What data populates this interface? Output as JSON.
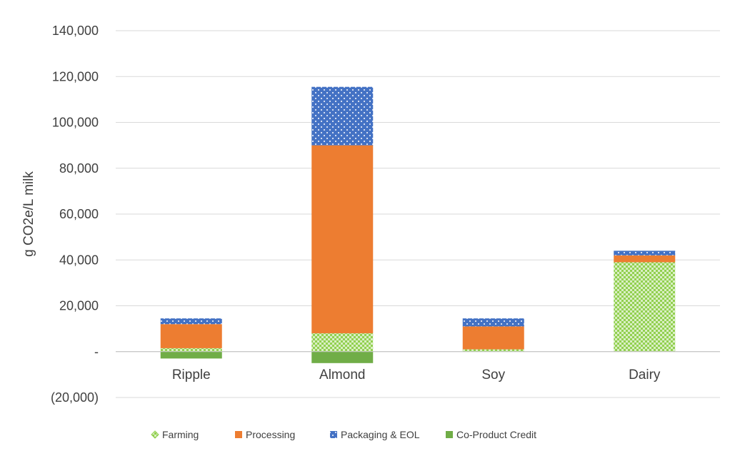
{
  "chart_data": {
    "type": "bar",
    "stacked": true,
    "title": "",
    "xlabel": "",
    "ylabel": "g CO2e/L milk",
    "ylim": [
      -20000,
      140000
    ],
    "yticks": [
      -20000,
      0,
      20000,
      40000,
      60000,
      80000,
      100000,
      120000,
      140000
    ],
    "ytick_labels": [
      "(20,000)",
      "-",
      "20,000",
      "40,000",
      "60,000",
      "80,000",
      "100,000",
      "120,000",
      "140,000"
    ],
    "grid": true,
    "legend_position": "bottom",
    "categories": [
      "Ripple",
      "Almond",
      "Soy",
      "Dairy"
    ],
    "series": [
      {
        "name": "Farming",
        "color": "#92d050",
        "pattern": "checker",
        "values": [
          1500,
          8000,
          1000,
          39000
        ]
      },
      {
        "name": "Processing",
        "color": "#ed7d31",
        "pattern": "solid",
        "values": [
          10500,
          82000,
          10000,
          3000
        ]
      },
      {
        "name": "Packaging & EOL",
        "color": "#4472c4",
        "pattern": "dots",
        "values": [
          2500,
          25500,
          3500,
          2000
        ]
      },
      {
        "name": "Co-Product Credit",
        "color": "#70ad47",
        "pattern": "solid",
        "values": [
          -3000,
          -5000,
          0,
          0
        ]
      }
    ]
  }
}
